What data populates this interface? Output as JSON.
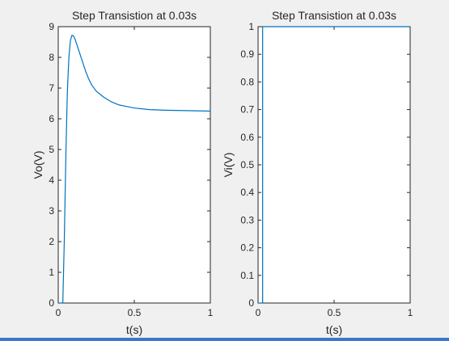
{
  "chart_data": [
    {
      "type": "line",
      "title": "Step Transistion at 0.03s",
      "xlabel": "t(s)",
      "ylabel": "Vo(V)",
      "xlim": [
        0,
        1
      ],
      "ylim": [
        0,
        9
      ],
      "xticks": [
        "0",
        "0.5",
        "1"
      ],
      "yticks": [
        "0",
        "1",
        "2",
        "3",
        "4",
        "5",
        "6",
        "7",
        "8",
        "9"
      ],
      "grid": false,
      "series": [
        {
          "color": "#0072bd",
          "x": [
            0,
            0.03,
            0.04,
            0.05,
            0.06,
            0.07,
            0.08,
            0.09,
            0.1,
            0.11,
            0.12,
            0.14,
            0.16,
            0.18,
            0.2,
            0.22,
            0.25,
            0.3,
            0.35,
            0.4,
            0.45,
            0.5,
            0.6,
            0.7,
            0.8,
            0.9,
            1.0
          ],
          "y": [
            0,
            0,
            2.1,
            4.8,
            6.9,
            8.0,
            8.55,
            8.72,
            8.7,
            8.6,
            8.45,
            8.15,
            7.85,
            7.55,
            7.3,
            7.1,
            6.9,
            6.7,
            6.55,
            6.45,
            6.4,
            6.35,
            6.3,
            6.28,
            6.27,
            6.26,
            6.25
          ]
        }
      ]
    },
    {
      "type": "line",
      "title": "Step Transistion at 0.03s",
      "xlabel": "t(s)",
      "ylabel": "Vi(V)",
      "xlim": [
        0,
        1
      ],
      "ylim": [
        0,
        1
      ],
      "xticks": [
        "0",
        "0.5",
        "1"
      ],
      "yticks": [
        "0",
        "0.1",
        "0.2",
        "0.3",
        "0.4",
        "0.5",
        "0.6",
        "0.7",
        "0.8",
        "0.9",
        "1"
      ],
      "grid": false,
      "series": [
        {
          "color": "#0072bd",
          "x": [
            0,
            0.03,
            0.03,
            1
          ],
          "y": [
            0,
            0,
            1,
            1
          ]
        }
      ]
    }
  ]
}
